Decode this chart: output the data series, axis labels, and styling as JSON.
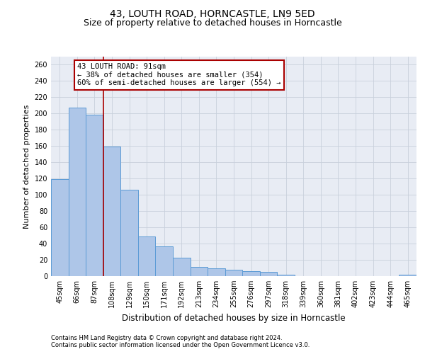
{
  "title": "43, LOUTH ROAD, HORNCASTLE, LN9 5ED",
  "subtitle": "Size of property relative to detached houses in Horncastle",
  "xlabel": "Distribution of detached houses by size in Horncastle",
  "ylabel": "Number of detached properties",
  "categories": [
    "45sqm",
    "66sqm",
    "87sqm",
    "108sqm",
    "129sqm",
    "150sqm",
    "171sqm",
    "192sqm",
    "213sqm",
    "234sqm",
    "255sqm",
    "276sqm",
    "297sqm",
    "318sqm",
    "339sqm",
    "360sqm",
    "381sqm",
    "402sqm",
    "423sqm",
    "444sqm",
    "465sqm"
  ],
  "values": [
    119,
    207,
    199,
    159,
    106,
    49,
    37,
    23,
    11,
    10,
    8,
    6,
    5,
    2,
    0,
    0,
    0,
    0,
    0,
    0,
    2
  ],
  "bar_color": "#aec6e8",
  "bar_edge_color": "#5b9bd5",
  "vline_x": 2.5,
  "vline_color": "#aa0000",
  "annotation_line1": "43 LOUTH ROAD: 91sqm",
  "annotation_line2": "← 38% of detached houses are smaller (354)",
  "annotation_line3": "60% of semi-detached houses are larger (554) →",
  "annotation_box_color": "#aa0000",
  "annotation_box_bg": "#ffffff",
  "ylim": [
    0,
    270
  ],
  "yticks": [
    0,
    20,
    40,
    60,
    80,
    100,
    120,
    140,
    160,
    180,
    200,
    220,
    240,
    260
  ],
  "grid_color": "#c8d0dc",
  "bg_color": "#e8ecf4",
  "footer_line1": "Contains HM Land Registry data © Crown copyright and database right 2024.",
  "footer_line2": "Contains public sector information licensed under the Open Government Licence v3.0.",
  "title_fontsize": 10,
  "subtitle_fontsize": 9,
  "ylabel_fontsize": 8,
  "xlabel_fontsize": 8.5,
  "tick_fontsize": 7,
  "annotation_fontsize": 7.5,
  "footer_fontsize": 6
}
